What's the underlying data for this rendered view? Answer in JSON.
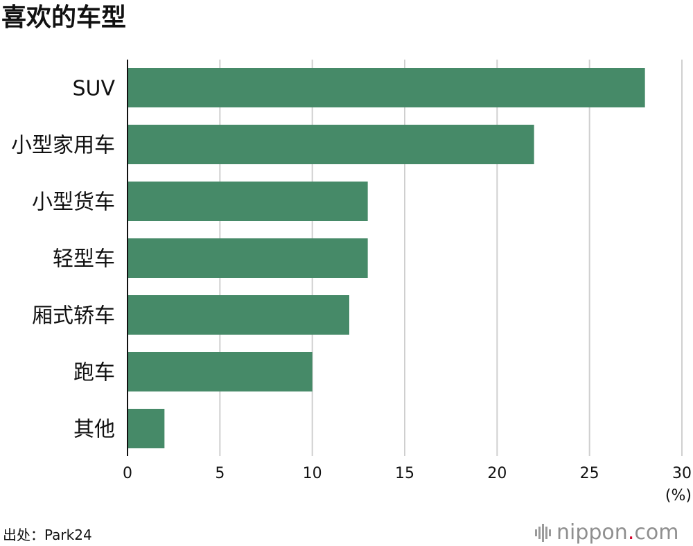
{
  "title": "喜欢的车型",
  "source": "出处：Park24",
  "logo": {
    "name": "nippon",
    "dot": ".",
    "suffix": "com",
    "dot_color": "#d7002a"
  },
  "colors": {
    "bar": "#468a68",
    "grid": "#cfcfcf",
    "axis": "#111111"
  },
  "chart_data": {
    "type": "bar",
    "orientation": "horizontal",
    "categories": [
      "SUV",
      "小型家用车",
      "小型货车",
      "轻型车",
      "厢式轿车",
      "跑车",
      "其他"
    ],
    "values": [
      28,
      22,
      13,
      13,
      12,
      10,
      2
    ],
    "xlim": [
      0,
      30
    ],
    "xticks": [
      0,
      5,
      10,
      15,
      20,
      25,
      30
    ],
    "unit_label": "(%)",
    "grid": true
  }
}
